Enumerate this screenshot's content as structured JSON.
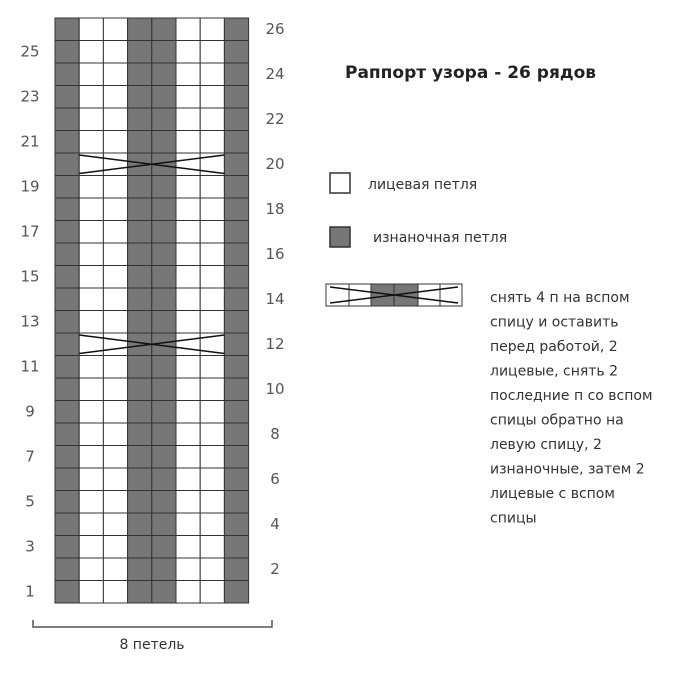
{
  "title": "Раппорт узора - 26 рядов",
  "left_row_numbers": [
    25,
    23,
    21,
    19,
    17,
    15,
    13,
    11,
    9,
    7,
    5,
    3,
    1
  ],
  "right_row_numbers": [
    26,
    24,
    22,
    20,
    18,
    16,
    14,
    12,
    10,
    8,
    6,
    4,
    2
  ],
  "width_label": "8 петель",
  "legend": {
    "knit": "лицевая петля",
    "purl": "изнаночная петля",
    "cable_lines": [
      "снять 4 п на вспом",
      "спицу и  оставить",
      "перед работой, 2",
      "лицевые, снять 2",
      "последние п со вспом",
      "спицы обратно на",
      "левую спицу, 2",
      "изнаночные, затем 2",
      "лицевые с вспом",
      "спицы"
    ]
  }
}
